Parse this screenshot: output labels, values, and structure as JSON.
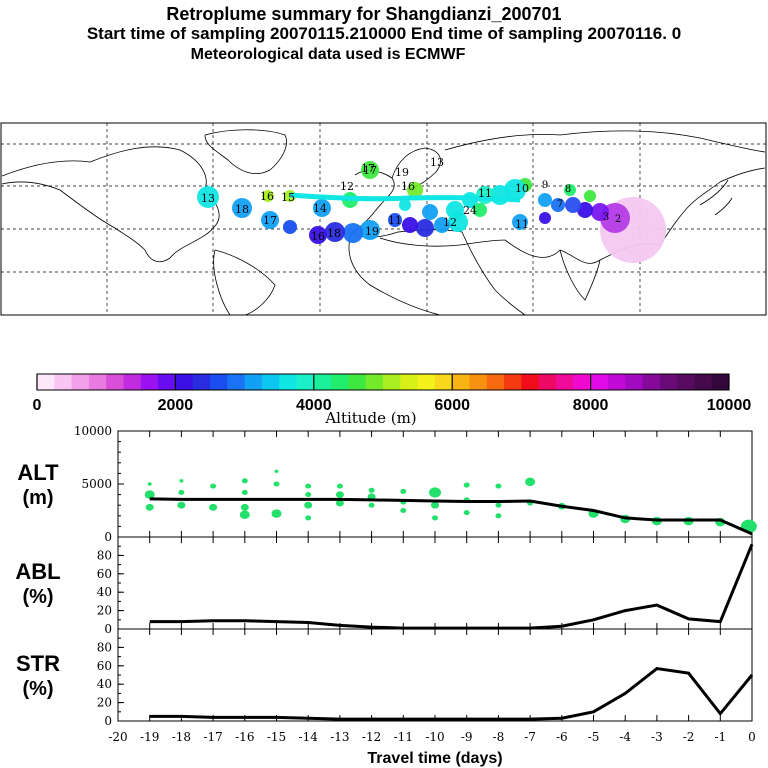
{
  "header": {
    "title": "Retroplume summary for Shangdianzi_200701",
    "sampling": "Start time of sampling 20070115.210000      End time of sampling 20070116.      0",
    "met": "Meteorological data used is ECMWF"
  },
  "colorbar": {
    "label": "Altitude (m)",
    "ticks": [
      "0",
      "2000",
      "4000",
      "6000",
      "8000",
      "10000"
    ],
    "range": [
      0,
      10000
    ],
    "colors": [
      "#fde8fb",
      "#f9c6f3",
      "#f3a0ea",
      "#e87ae0",
      "#d94fd8",
      "#c12ce0",
      "#9a12f0",
      "#6a0ef2",
      "#3a10e6",
      "#2a2ce0",
      "#1a4ef0",
      "#1a72f4",
      "#12a0f4",
      "#0cc6f0",
      "#10e6e4",
      "#1cf0c8",
      "#1cf09a",
      "#20ee6c",
      "#3ee83e",
      "#74ea2a",
      "#a8ee20",
      "#d8f018",
      "#f4f21a",
      "#f8d81a",
      "#f8b414",
      "#f89010",
      "#f86a10",
      "#f43a10",
      "#f00c1a",
      "#ee0a64",
      "#f00a9a",
      "#f00ad0",
      "#e20ae8",
      "#c20ad8",
      "#a20ac0",
      "#860a9a",
      "#6a0a78",
      "#560a60",
      "#440a4c",
      "#34083c"
    ]
  },
  "map_labels": [
    {
      "t": "13",
      "c": "#0ce0f0"
    },
    {
      "t": "17",
      "c": "#3ee83e"
    },
    {
      "t": "13",
      "c": "#a8ee20"
    },
    {
      "t": "11",
      "c": "#10e6e4"
    },
    {
      "t": "10",
      "c": "#10e6e4"
    },
    {
      "t": "9",
      "c": "#20ee6c"
    },
    {
      "t": "8",
      "c": "#20ee6c"
    },
    {
      "t": "7",
      "c": "#1a72f4"
    },
    {
      "t": "16",
      "c": "#a8ee20"
    },
    {
      "t": "15",
      "c": "#a8ee20"
    },
    {
      "t": "18",
      "c": "#12a0f4"
    },
    {
      "t": "14",
      "c": "#12a0f4"
    },
    {
      "t": "17",
      "c": "#12a0f4"
    },
    {
      "t": "18",
      "c": "#3a10e6"
    },
    {
      "t": "16",
      "c": "#3a10e6"
    },
    {
      "t": "19",
      "c": "#12a0f4"
    },
    {
      "t": "11",
      "c": "#1a4ef0"
    },
    {
      "t": "12",
      "c": "#12a0f4"
    },
    {
      "t": "24",
      "c": "#10e6e4"
    },
    {
      "t": "11",
      "c": "#12a0f4"
    },
    {
      "t": "3",
      "c": "#c12ce0"
    },
    {
      "t": "2",
      "c": "#9a12f0"
    },
    {
      "t": "12",
      "c": "#20ee6c"
    },
    {
      "t": "16",
      "c": "#20ee6c"
    },
    {
      "t": "17",
      "c": "#3ee83e"
    },
    {
      "t": "19",
      "c": "#10e6e4"
    }
  ],
  "chart_data": [
    {
      "type": "scatter",
      "name": "ALT",
      "ylabel": "ALT (m)",
      "yticks": [
        0,
        5000,
        10000
      ],
      "ylim": [
        0,
        10000
      ],
      "xlim": [
        -20,
        0
      ],
      "line": {
        "x": [
          -19,
          -18,
          -17,
          -16,
          -15,
          -14,
          -13,
          -12,
          -11,
          -10,
          -9,
          -8,
          -7,
          -6,
          -5,
          -4,
          -3,
          -2,
          -1,
          0
        ],
        "y": [
          3600,
          3550,
          3550,
          3550,
          3550,
          3550,
          3550,
          3500,
          3450,
          3400,
          3350,
          3350,
          3400,
          2900,
          2500,
          1800,
          1600,
          1600,
          1600,
          300
        ]
      },
      "points": [
        {
          "x": -19,
          "y": 5000,
          "s": 2
        },
        {
          "x": -19,
          "y": 4000,
          "s": 5
        },
        {
          "x": -19,
          "y": 2800,
          "s": 4
        },
        {
          "x": -18,
          "y": 5300,
          "s": 2
        },
        {
          "x": -18,
          "y": 4200,
          "s": 3
        },
        {
          "x": -18,
          "y": 3000,
          "s": 4
        },
        {
          "x": -17,
          "y": 4800,
          "s": 3
        },
        {
          "x": -17,
          "y": 2800,
          "s": 4
        },
        {
          "x": -16,
          "y": 5300,
          "s": 3
        },
        {
          "x": -16,
          "y": 4200,
          "s": 3
        },
        {
          "x": -16,
          "y": 2800,
          "s": 4
        },
        {
          "x": -16,
          "y": 2100,
          "s": 5
        },
        {
          "x": -15,
          "y": 6200,
          "s": 2
        },
        {
          "x": -15,
          "y": 5000,
          "s": 3
        },
        {
          "x": -15,
          "y": 2200,
          "s": 5
        },
        {
          "x": -14,
          "y": 4800,
          "s": 3
        },
        {
          "x": -14,
          "y": 4000,
          "s": 3
        },
        {
          "x": -14,
          "y": 3000,
          "s": 4
        },
        {
          "x": -14,
          "y": 1800,
          "s": 3
        },
        {
          "x": -13,
          "y": 4800,
          "s": 3
        },
        {
          "x": -13,
          "y": 4000,
          "s": 4
        },
        {
          "x": -13,
          "y": 3200,
          "s": 4
        },
        {
          "x": -12,
          "y": 4400,
          "s": 3
        },
        {
          "x": -12,
          "y": 3800,
          "s": 4
        },
        {
          "x": -12,
          "y": 3000,
          "s": 3
        },
        {
          "x": -11,
          "y": 4300,
          "s": 3
        },
        {
          "x": -11,
          "y": 3300,
          "s": 3
        },
        {
          "x": -11,
          "y": 2500,
          "s": 3
        },
        {
          "x": -10,
          "y": 4200,
          "s": 6
        },
        {
          "x": -10,
          "y": 3000,
          "s": 4
        },
        {
          "x": -10,
          "y": 1800,
          "s": 3
        },
        {
          "x": -9,
          "y": 4900,
          "s": 3
        },
        {
          "x": -9,
          "y": 3500,
          "s": 3
        },
        {
          "x": -9,
          "y": 2300,
          "s": 3
        },
        {
          "x": -8,
          "y": 4800,
          "s": 3
        },
        {
          "x": -8,
          "y": 3000,
          "s": 3
        },
        {
          "x": -8,
          "y": 2000,
          "s": 3
        },
        {
          "x": -7,
          "y": 5200,
          "s": 5
        },
        {
          "x": -7,
          "y": 3200,
          "s": 3
        },
        {
          "x": -6,
          "y": 2900,
          "s": 4
        },
        {
          "x": -5,
          "y": 2200,
          "s": 5
        },
        {
          "x": -4,
          "y": 1700,
          "s": 5
        },
        {
          "x": -3,
          "y": 1500,
          "s": 5
        },
        {
          "x": -2,
          "y": 1500,
          "s": 5
        },
        {
          "x": -1,
          "y": 1400,
          "s": 5
        },
        {
          "x": -0.1,
          "y": 1000,
          "s": 8
        }
      ]
    },
    {
      "type": "line",
      "name": "ABL",
      "ylabel": "ABL (%)",
      "yticks": [
        0,
        20,
        40,
        60,
        80
      ],
      "ylim": [
        0,
        100
      ],
      "xlim": [
        -20,
        0
      ],
      "x": [
        -19,
        -18,
        -17,
        -16,
        -15,
        -14,
        -13,
        -12,
        -11,
        -10,
        -9,
        -8,
        -7,
        -6,
        -5,
        -4,
        -3,
        -2,
        -1,
        0
      ],
      "values": [
        8,
        8,
        9,
        9,
        8,
        7,
        4,
        2,
        1,
        1,
        1,
        1,
        1,
        3,
        10,
        20,
        26,
        11,
        8,
        92
      ]
    },
    {
      "type": "line",
      "name": "STR",
      "ylabel": "STR (%)",
      "yticks": [
        0,
        20,
        40,
        60,
        80
      ],
      "ylim": [
        0,
        100
      ],
      "xlim": [
        -20,
        0
      ],
      "x": [
        -19,
        -18,
        -17,
        -16,
        -15,
        -14,
        -13,
        -12,
        -11,
        -10,
        -9,
        -8,
        -7,
        -6,
        -5,
        -4,
        -3,
        -2,
        -1,
        0
      ],
      "values": [
        5,
        5,
        4,
        4,
        4,
        3,
        2,
        2,
        2,
        2,
        2,
        2,
        2,
        3,
        10,
        30,
        57,
        52,
        8,
        50
      ],
      "xlabel": "Travel time (days)",
      "xticks": [
        "-20",
        "-19",
        "-18",
        "-17",
        "-16",
        "-15",
        "-14",
        "-13",
        "-12",
        "-11",
        "-10",
        "-9",
        "-8",
        "-7",
        "-6",
        "-5",
        "-4",
        "-3",
        "-2",
        "-1",
        "0"
      ]
    }
  ]
}
